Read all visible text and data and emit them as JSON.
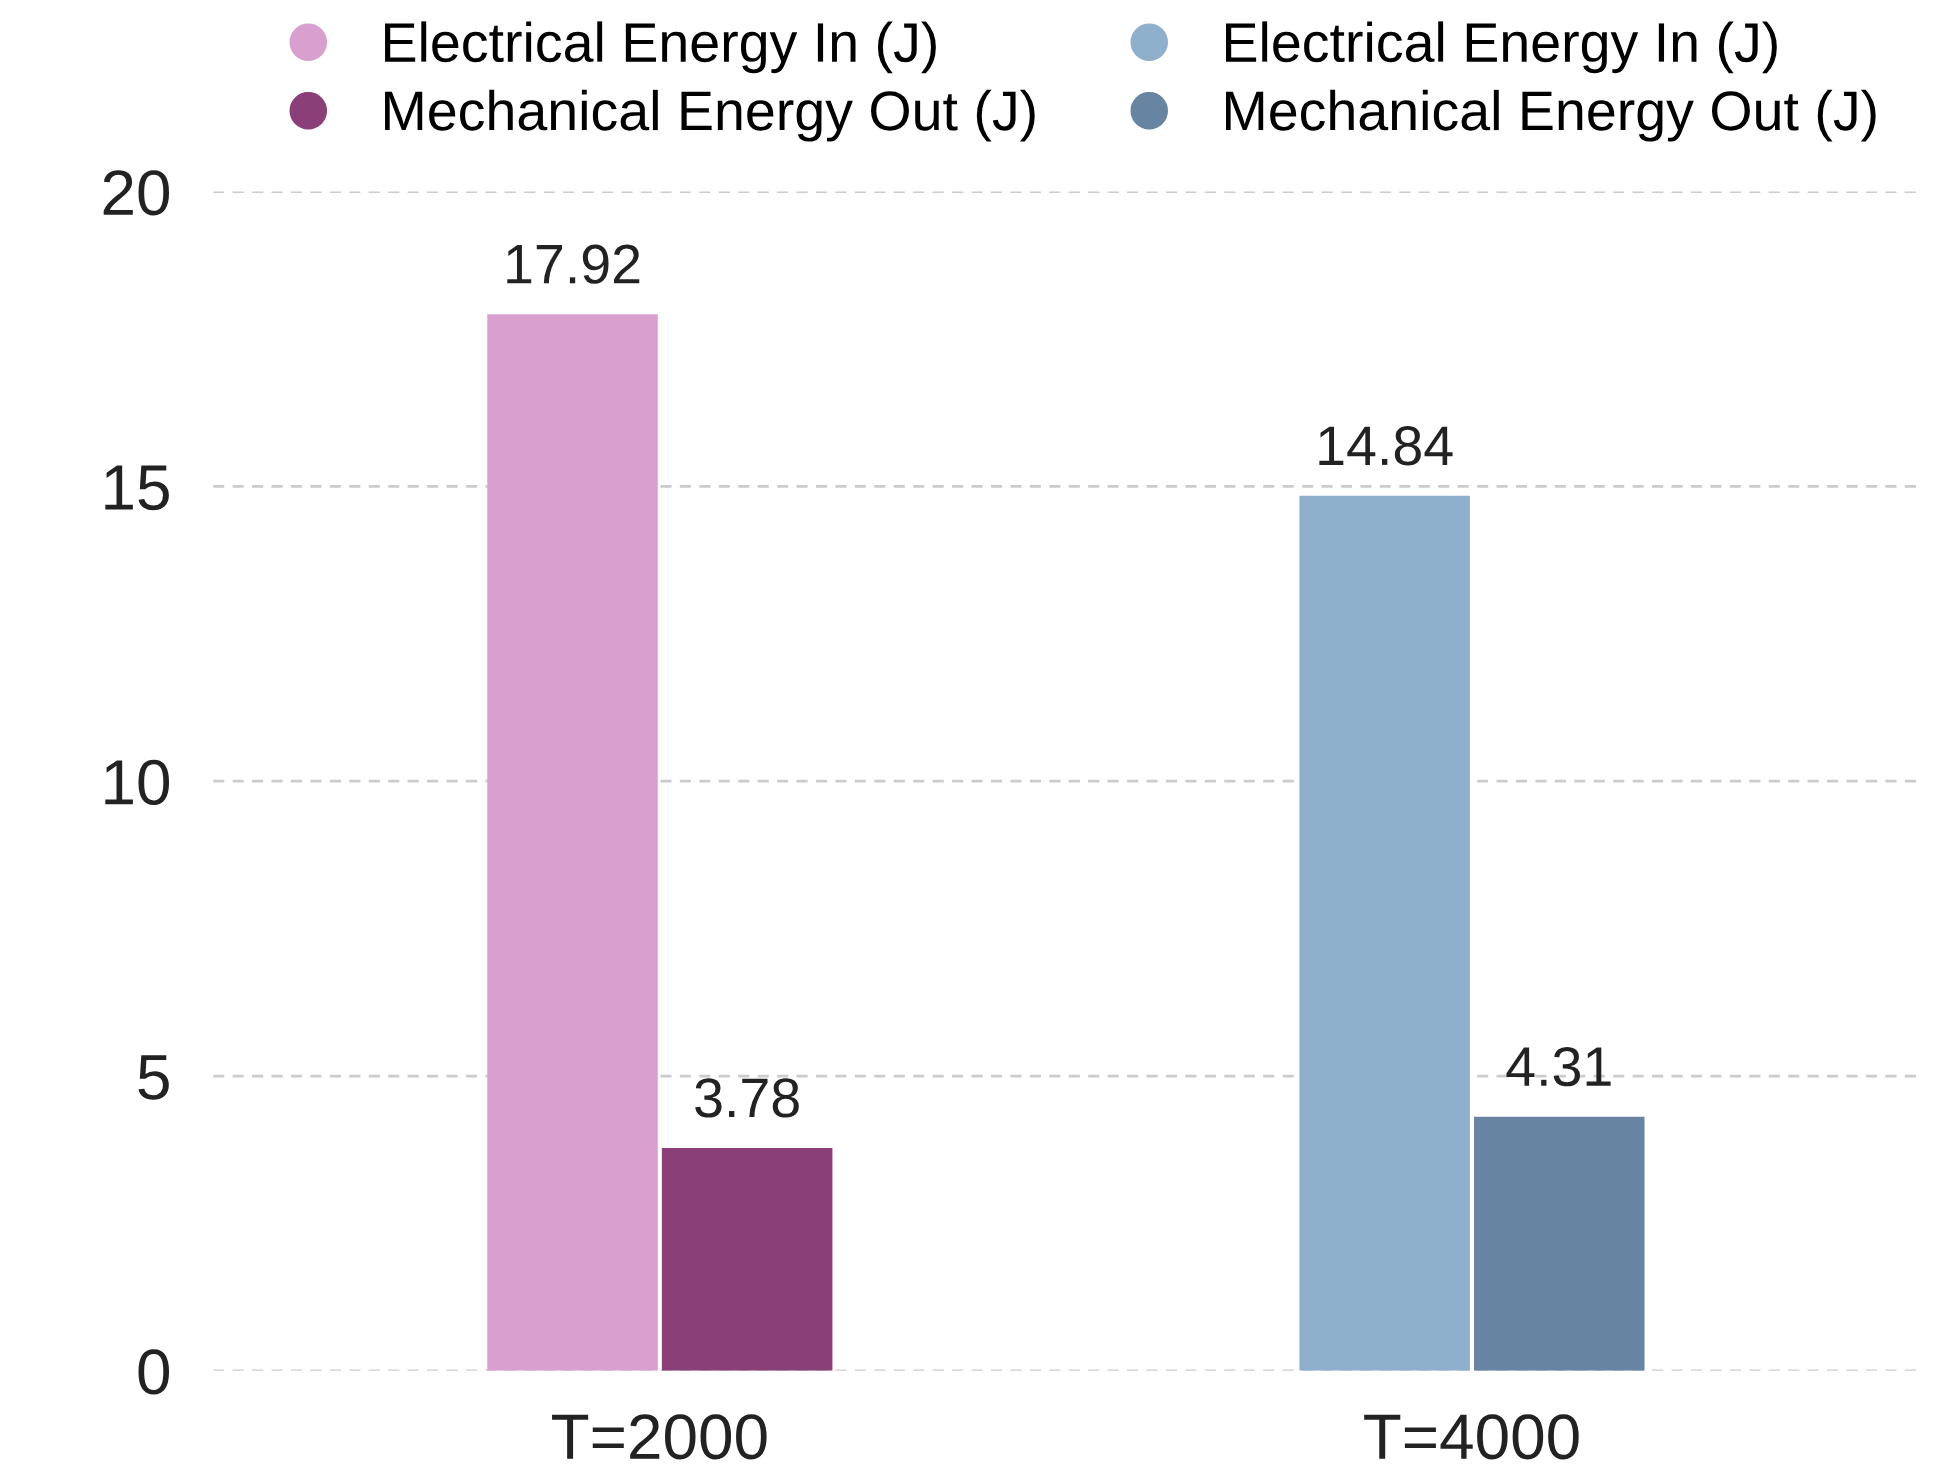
{
  "chart_data": {
    "type": "bar",
    "categories": [
      "T=2000",
      "T=4000"
    ],
    "series": [
      {
        "name": "Electrical Energy In (J)",
        "color": "#d9a0cf",
        "values": [
          17.92,
          null
        ]
      },
      {
        "name": "Mechanical Energy Out (J)",
        "color": "#8b3f78",
        "values": [
          3.78,
          null
        ]
      },
      {
        "name": "Electrical Energy In (J)",
        "color": "#8eb0cc",
        "values": [
          null,
          14.84
        ]
      },
      {
        "name": "Mechanical Energy Out (J)",
        "color": "#6785a3",
        "values": [
          null,
          4.31
        ]
      }
    ],
    "ylim": [
      0,
      20
    ],
    "yticks": [
      0,
      5,
      10,
      15,
      20
    ],
    "grid": "y",
    "legend": "top",
    "data_labels": true
  }
}
